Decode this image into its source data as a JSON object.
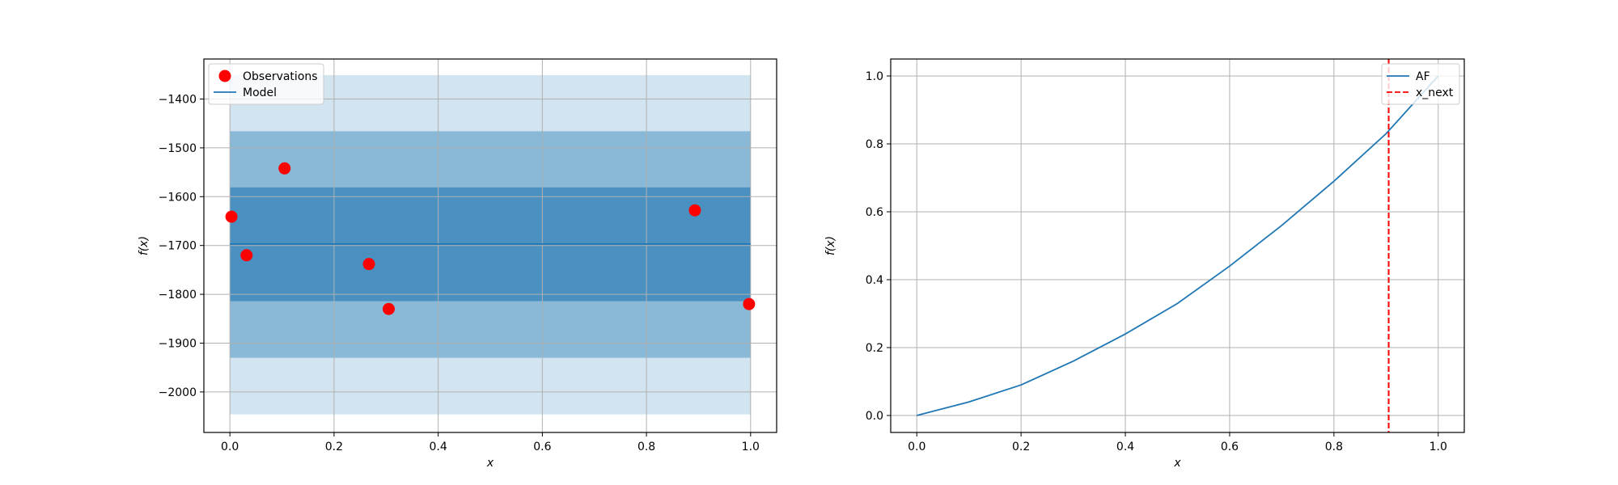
{
  "chart_data": [
    {
      "type": "line",
      "title": "",
      "xlabel": "x",
      "ylabel": "f(x)",
      "xlim": [
        -0.05,
        1.05
      ],
      "ylim": [
        -2083,
        -1318
      ],
      "xticks": [
        0.0,
        0.2,
        0.4,
        0.6,
        0.8,
        1.0
      ],
      "xtick_labels": [
        "0.0",
        "0.2",
        "0.4",
        "0.6",
        "0.8",
        "1.0"
      ],
      "yticks": [
        -2000,
        -1900,
        -1800,
        -1700,
        -1600,
        -1500,
        -1400
      ],
      "ytick_labels": [
        "−2000",
        "−1900",
        "−1800",
        "−1700",
        "−1600",
        "−1500",
        "−1400"
      ],
      "grid": true,
      "legend_position": "top-left",
      "series": [
        {
          "name": "Observations",
          "kind": "scatter",
          "color": "#ff0000",
          "x": [
            0.003,
            0.032,
            0.105,
            0.267,
            0.305,
            0.893,
            0.997
          ],
          "y": [
            -1641,
            -1720,
            -1542,
            -1738,
            -1830,
            -1628,
            -1820
          ]
        },
        {
          "name": "Model",
          "kind": "line",
          "color": "#1f77b4",
          "x": [
            0.0,
            1.0
          ],
          "y": [
            -1697,
            -1697
          ]
        }
      ],
      "bands": [
        {
          "x": [
            0.0,
            1.0
          ],
          "lower": -2046,
          "upper": -1351,
          "color": "#1f77b4",
          "opacity": 0.2
        },
        {
          "x": [
            0.0,
            1.0
          ],
          "lower": -1930,
          "upper": -1466,
          "color": "#1f77b4",
          "opacity": 0.4
        },
        {
          "x": [
            0.0,
            1.0
          ],
          "lower": -1814,
          "upper": -1581,
          "color": "#1f77b4",
          "opacity": 0.6
        }
      ]
    },
    {
      "type": "line",
      "title": "",
      "xlabel": "x",
      "ylabel": "f(x)",
      "xlim": [
        -0.05,
        1.05
      ],
      "ylim": [
        -0.05,
        1.05
      ],
      "xticks": [
        0.0,
        0.2,
        0.4,
        0.6,
        0.8,
        1.0
      ],
      "xtick_labels": [
        "0.0",
        "0.2",
        "0.4",
        "0.6",
        "0.8",
        "1.0"
      ],
      "yticks": [
        0.0,
        0.2,
        0.4,
        0.6,
        0.8,
        1.0
      ],
      "ytick_labels": [
        "0.0",
        "0.2",
        "0.4",
        "0.6",
        "0.8",
        "1.0"
      ],
      "grid": true,
      "legend_position": "top-right",
      "series": [
        {
          "name": "AF",
          "kind": "line",
          "color": "#1f77b4",
          "x": [
            0.0,
            0.1,
            0.2,
            0.3,
            0.4,
            0.5,
            0.6,
            0.7,
            0.8,
            0.9,
            1.0
          ],
          "y": [
            0.0,
            0.04,
            0.09,
            0.16,
            0.24,
            0.33,
            0.44,
            0.56,
            0.69,
            0.83,
            1.0
          ]
        },
        {
          "name": "x_next",
          "kind": "vline",
          "color": "#ff0000",
          "style": "dashed",
          "x": 0.905
        }
      ]
    }
  ]
}
